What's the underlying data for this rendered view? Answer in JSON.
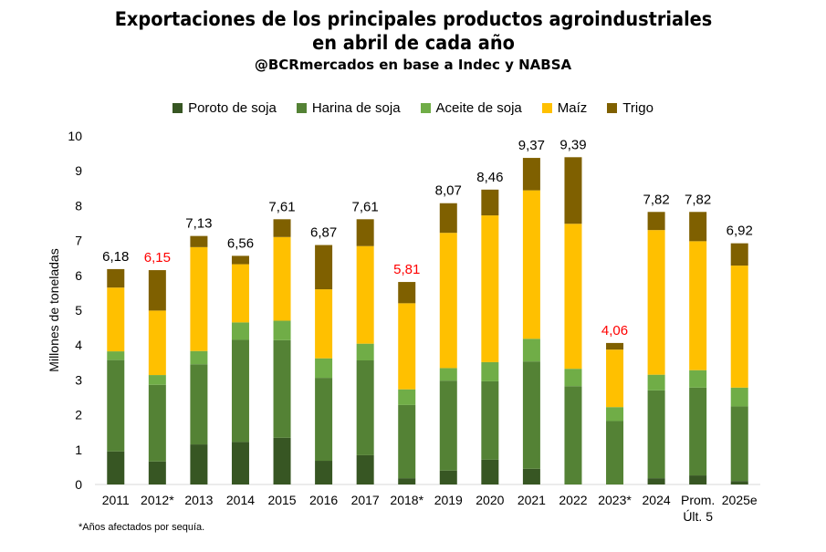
{
  "header": {
    "title": "Exportaciones de los principales productos agroindustriales en abril de cada año",
    "subtitle": "@BCRmercados en base a Indec y NABSA"
  },
  "footnote": "*Años afectados por sequía.",
  "colors": {
    "poroto": "#375623",
    "harina": "#548235",
    "aceite": "#70AD47",
    "maiz": "#FFC000",
    "trigo": "#7F6000",
    "highlight_label": "#FF0000",
    "normal_label": "#000000"
  },
  "chart_data": {
    "type": "bar",
    "stacked": true,
    "ylabel": "Millones de toneladas",
    "xlabel": "",
    "ylim": [
      0,
      10
    ],
    "yticks": [
      "0",
      "1",
      "2",
      "3",
      "4",
      "5",
      "6",
      "7",
      "8",
      "9",
      "10"
    ],
    "grid": false,
    "legend_position": "top",
    "categories": [
      "2011",
      "2012*",
      "2013",
      "2014",
      "2015",
      "2016",
      "2017",
      "2018*",
      "2019",
      "2020",
      "2021",
      "2022",
      "2023*",
      "2024",
      "Prom.\nÚlt. 5",
      "2025e"
    ],
    "series": [
      {
        "name": "Poroto de soja",
        "color": "#375623",
        "values": [
          0.95,
          0.66,
          1.15,
          1.22,
          1.34,
          0.68,
          0.84,
          0.18,
          0.4,
          0.71,
          0.45,
          0.0,
          0.0,
          0.18,
          0.26,
          0.1
        ]
      },
      {
        "name": "Harina de soja",
        "color": "#548235",
        "values": [
          2.62,
          2.2,
          2.3,
          2.93,
          2.8,
          2.38,
          2.72,
          2.1,
          2.58,
          2.25,
          3.08,
          2.82,
          1.82,
          2.52,
          2.52,
          2.14
        ]
      },
      {
        "name": "Aceite de soja",
        "color": "#70AD47",
        "values": [
          0.25,
          0.28,
          0.38,
          0.5,
          0.56,
          0.56,
          0.48,
          0.45,
          0.36,
          0.55,
          0.65,
          0.5,
          0.4,
          0.45,
          0.5,
          0.54
        ]
      },
      {
        "name": "Maíz",
        "color": "#FFC000",
        "values": [
          1.83,
          1.85,
          2.98,
          1.67,
          2.4,
          1.98,
          2.8,
          2.47,
          3.88,
          4.21,
          4.26,
          4.16,
          1.65,
          4.15,
          3.7,
          3.5
        ]
      },
      {
        "name": "Trigo",
        "color": "#7F6000",
        "values": [
          0.53,
          1.16,
          0.32,
          0.24,
          0.51,
          1.27,
          0.77,
          0.61,
          0.85,
          0.74,
          0.93,
          1.91,
          0.19,
          0.52,
          0.84,
          0.64
        ]
      }
    ],
    "totals": [
      "6,18",
      "6,15",
      "7,13",
      "6,56",
      "7,61",
      "6,87",
      "7,61",
      "5,81",
      "8,07",
      "8,46",
      "9,37",
      "9,39",
      "4,06",
      "7,82",
      "7,82",
      "6,92"
    ],
    "totals_highlighted": [
      false,
      true,
      false,
      false,
      false,
      false,
      false,
      true,
      false,
      false,
      false,
      false,
      true,
      false,
      false,
      false
    ]
  }
}
